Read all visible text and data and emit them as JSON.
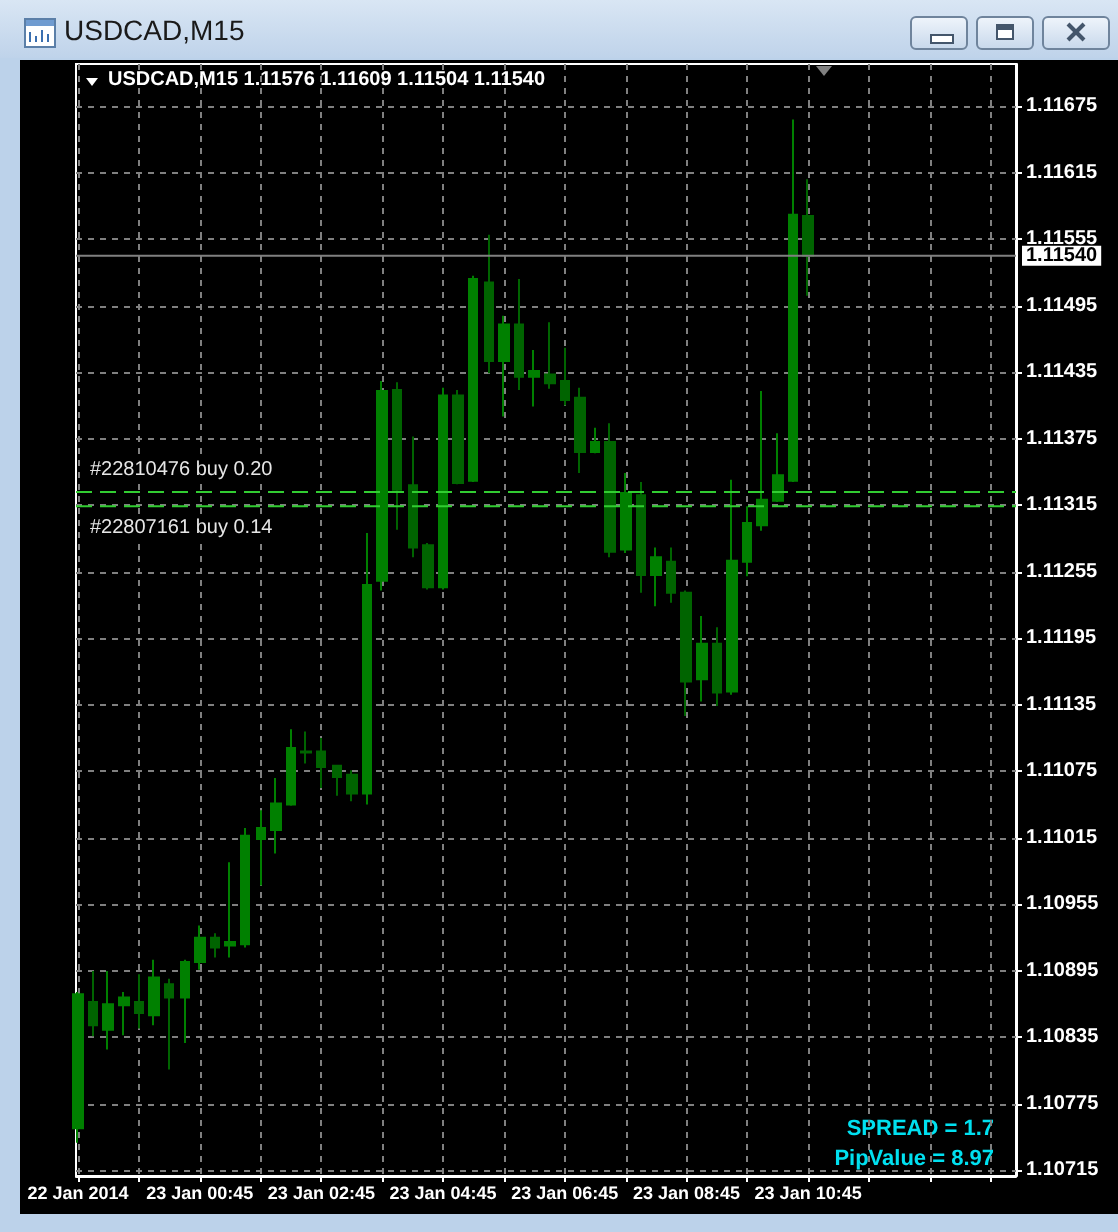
{
  "chart_data": {
    "type": "candlestick",
    "title": "USDCAD,M15",
    "subtitle": "USDCAD,M15 1.11576 1.11609 1.11504 1.11540",
    "x": [
      "2014-01-22T22:45",
      "2014-01-22T23:00",
      "2014-01-22T23:15",
      "2014-01-22T23:30",
      "2014-01-22T23:45",
      "2014-01-23T00:00",
      "2014-01-23T00:15",
      "2014-01-23T00:30",
      "2014-01-23T00:45",
      "2014-01-23T01:00",
      "2014-01-23T01:15",
      "2014-01-23T01:30",
      "2014-01-23T01:45",
      "2014-01-23T02:00",
      "2014-01-23T02:15",
      "2014-01-23T02:30",
      "2014-01-23T02:45",
      "2014-01-23T03:00",
      "2014-01-23T03:15",
      "2014-01-23T03:30",
      "2014-01-23T03:45",
      "2014-01-23T04:00",
      "2014-01-23T04:15",
      "2014-01-23T04:30",
      "2014-01-23T04:45",
      "2014-01-23T05:00",
      "2014-01-23T05:15",
      "2014-01-23T05:30",
      "2014-01-23T05:45",
      "2014-01-23T06:00",
      "2014-01-23T06:15",
      "2014-01-23T06:30",
      "2014-01-23T06:45",
      "2014-01-23T07:00",
      "2014-01-23T07:15",
      "2014-01-23T07:30",
      "2014-01-23T07:45",
      "2014-01-23T08:00",
      "2014-01-23T08:15",
      "2014-01-23T08:30",
      "2014-01-23T08:45",
      "2014-01-23T09:00",
      "2014-01-23T09:15",
      "2014-01-23T09:30",
      "2014-01-23T09:45",
      "2014-01-23T10:00",
      "2014-01-23T10:15",
      "2014-01-23T10:30",
      "2014-01-23T10:45"
    ],
    "ohlc": [
      [
        1.10753,
        1.10876,
        1.1074,
        1.10874
      ],
      [
        1.10867,
        1.10895,
        1.10836,
        1.10846
      ],
      [
        1.10842,
        1.10895,
        1.10824,
        1.10865
      ],
      [
        1.10864,
        1.10876,
        1.10837,
        1.10871
      ],
      [
        1.10867,
        1.10892,
        1.10843,
        1.10857
      ],
      [
        1.10855,
        1.10905,
        1.10846,
        1.10889
      ],
      [
        1.10883,
        1.10888,
        1.10806,
        1.10871
      ],
      [
        1.10871,
        1.10905,
        1.1083,
        1.10903
      ],
      [
        1.10903,
        1.10936,
        1.10896,
        1.10925
      ],
      [
        1.10925,
        1.10929,
        1.10907,
        1.10916
      ],
      [
        1.10918,
        1.10993,
        1.10907,
        1.10921
      ],
      [
        1.10919,
        1.11024,
        1.10916,
        1.11017
      ],
      [
        1.11014,
        1.1104,
        1.10972,
        1.11024
      ],
      [
        1.11022,
        1.11069,
        1.11001,
        1.11046
      ],
      [
        1.11045,
        1.11113,
        1.11044,
        1.11096
      ],
      [
        1.11093,
        1.11111,
        1.11082,
        1.11092
      ],
      [
        1.11093,
        1.11105,
        1.1106,
        1.11079
      ],
      [
        1.1108,
        1.11081,
        1.11053,
        1.1107
      ],
      [
        1.11072,
        1.11076,
        1.11048,
        1.11055
      ],
      [
        1.11055,
        1.1129,
        1.11045,
        1.11243
      ],
      [
        1.11247,
        1.11427,
        1.11238,
        1.11418
      ],
      [
        1.11419,
        1.11426,
        1.11293,
        1.11329
      ],
      [
        1.11333,
        1.11377,
        1.11268,
        1.11277
      ],
      [
        1.11279,
        1.11281,
        1.11239,
        1.11241
      ],
      [
        1.11241,
        1.11421,
        1.11239,
        1.11414
      ],
      [
        1.11414,
        1.11419,
        1.11334,
        1.11335
      ],
      [
        1.11337,
        1.11522,
        1.11336,
        1.11519
      ],
      [
        1.11516,
        1.11559,
        1.11434,
        1.11445
      ],
      [
        1.11445,
        1.11486,
        1.11395,
        1.11478
      ],
      [
        1.11478,
        1.11519,
        1.11419,
        1.11431
      ],
      [
        1.11431,
        1.11455,
        1.11404,
        1.11436
      ],
      [
        1.11433,
        1.1148,
        1.1142,
        1.11425
      ],
      [
        1.11427,
        1.11457,
        1.11405,
        1.1141
      ],
      [
        1.11412,
        1.11421,
        1.11344,
        1.11363
      ],
      [
        1.11363,
        1.11385,
        1.11362,
        1.11372
      ],
      [
        1.11372,
        1.11389,
        1.11268,
        1.11273
      ],
      [
        1.11275,
        1.11344,
        1.11272,
        1.11326
      ],
      [
        1.11324,
        1.11336,
        1.11236,
        1.11252
      ],
      [
        1.11252,
        1.11277,
        1.11224,
        1.11268
      ],
      [
        1.11264,
        1.11277,
        1.11227,
        1.11236
      ],
      [
        1.11236,
        1.11238,
        1.11125,
        1.11156
      ],
      [
        1.11158,
        1.11215,
        1.11138,
        1.1119
      ],
      [
        1.1119,
        1.11205,
        1.11134,
        1.11146
      ],
      [
        1.11147,
        1.11338,
        1.11144,
        1.11265
      ],
      [
        1.11264,
        1.11314,
        1.11251,
        1.11299
      ],
      [
        1.11297,
        1.11418,
        1.11292,
        1.1132
      ],
      [
        1.11319,
        1.1138,
        1.11318,
        1.11342
      ],
      [
        1.11337,
        1.11663,
        1.11336,
        1.11577
      ],
      [
        1.11576,
        1.11609,
        1.11504,
        1.1154
      ]
    ],
    "colors": [
      "#008000",
      "#006400",
      "#008000",
      "#008000",
      "#006400",
      "#008000",
      "#006400",
      "#008000",
      "#008000",
      "#006400",
      "#008000",
      "#008000",
      "#008000",
      "#008000",
      "#008000",
      "#006400",
      "#006400",
      "#006400",
      "#006400",
      "#008000",
      "#008000",
      "#006400",
      "#006400",
      "#006400",
      "#008000",
      "#006400",
      "#008000",
      "#006400",
      "#008000",
      "#006400",
      "#008000",
      "#006400",
      "#006400",
      "#006400",
      "#008000",
      "#006400",
      "#008000",
      "#006400",
      "#008000",
      "#006400",
      "#006400",
      "#008000",
      "#006400",
      "#008000",
      "#008000",
      "#008000",
      "#008000",
      "#008000",
      "#006400"
    ],
    "xlim": [
      "2014-01-22T22:43",
      "2014-01-23T14:10"
    ],
    "xticks": [
      {
        "value": "2014-01-22T22:45",
        "label": "22 Jan 2014"
      },
      {
        "value": "2014-01-22T23:45",
        "label": null
      },
      {
        "value": "2014-01-23T00:45",
        "label": "23 Jan 00:45"
      },
      {
        "value": "2014-01-23T01:45",
        "label": null
      },
      {
        "value": "2014-01-23T02:45",
        "label": "23 Jan 02:45"
      },
      {
        "value": "2014-01-23T03:45",
        "label": null
      },
      {
        "value": "2014-01-23T04:45",
        "label": "23 Jan 04:45"
      },
      {
        "value": "2014-01-23T05:45",
        "label": null
      },
      {
        "value": "2014-01-23T06:45",
        "label": "23 Jan 06:45"
      },
      {
        "value": "2014-01-23T07:45",
        "label": null
      },
      {
        "value": "2014-01-23T08:45",
        "label": "23 Jan 08:45"
      },
      {
        "value": "2014-01-23T09:45",
        "label": null
      },
      {
        "value": "2014-01-23T10:45",
        "label": "23 Jan 10:45"
      },
      {
        "value": "2014-01-23T11:45",
        "label": null
      },
      {
        "value": "2014-01-23T12:45",
        "label": null
      },
      {
        "value": "2014-01-23T13:45",
        "label": null
      }
    ],
    "ylim": [
      1.1071,
      1.11713
    ],
    "yticks": [
      1.10715,
      1.10775,
      1.10835,
      1.10895,
      1.10955,
      1.11015,
      1.11075,
      1.11135,
      1.11195,
      1.11255,
      1.11315,
      1.11375,
      1.11435,
      1.11495,
      1.11555,
      1.11615,
      1.11675
    ],
    "grid": true,
    "ref_lines": [
      {
        "axis": "y",
        "value": 1.1154,
        "label": "1.11540",
        "color": "#808080",
        "line_style": "solid"
      },
      {
        "axis": "y",
        "value": 1.11327,
        "label": "#22810476 buy 0.20",
        "color": "#32cd32",
        "line_style": "dashed"
      },
      {
        "axis": "y",
        "value": 1.11314,
        "label": "#22807161 buy 0.14",
        "color": "#32cd32",
        "line_style": "dashed"
      }
    ],
    "annotations": [
      "SPREAD = 1.7",
      "PipValue = 8.97"
    ]
  }
}
